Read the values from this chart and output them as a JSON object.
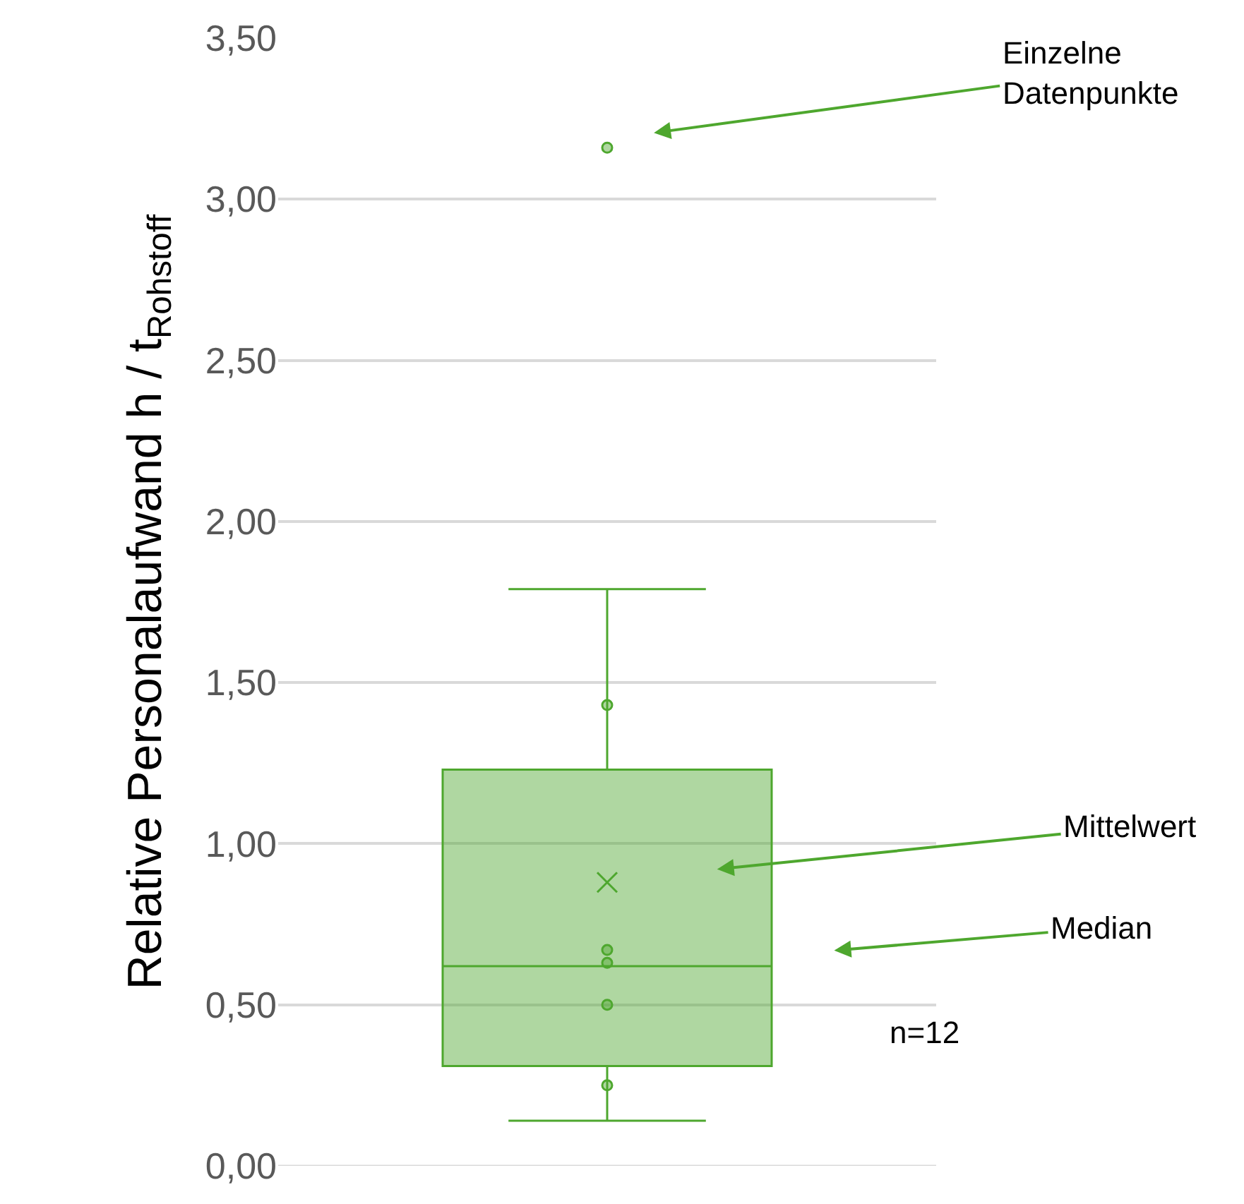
{
  "chart_data": {
    "type": "box",
    "categories": [
      null
    ],
    "ylabel": "Relative Personalaufwand h / t$_{Rohstoff}$",
    "ylim": [
      0,
      3.5
    ],
    "yticks": [
      {
        "value": 0,
        "label": "0,00"
      },
      {
        "value": 0.5,
        "label": "0,50"
      },
      {
        "value": 1,
        "label": "1,00"
      },
      {
        "value": 1.5,
        "label": "1,50"
      },
      {
        "value": 2,
        "label": "2,00"
      },
      {
        "value": 2.5,
        "label": "2,50"
      },
      {
        "value": 3,
        "label": "3,00"
      },
      {
        "value": 3.5,
        "label": "3,50"
      }
    ],
    "grid": "y",
    "series": [
      {
        "color": "#4ea72e",
        "boxes": [
          {
            "low": 0.14,
            "q1": 0.31,
            "median": 0.62,
            "q3": 1.23,
            "high": 1.79,
            "mean": 0.88,
            "outliers": [
              3.16,
              1.43,
              0.67,
              0.63,
              0.5,
              0.25
            ]
          }
        ]
      }
    ],
    "annotations": [
      "Einzelne\nDatenpunkte",
      "Mittelwert",
      "Median",
      "n=12"
    ]
  }
}
